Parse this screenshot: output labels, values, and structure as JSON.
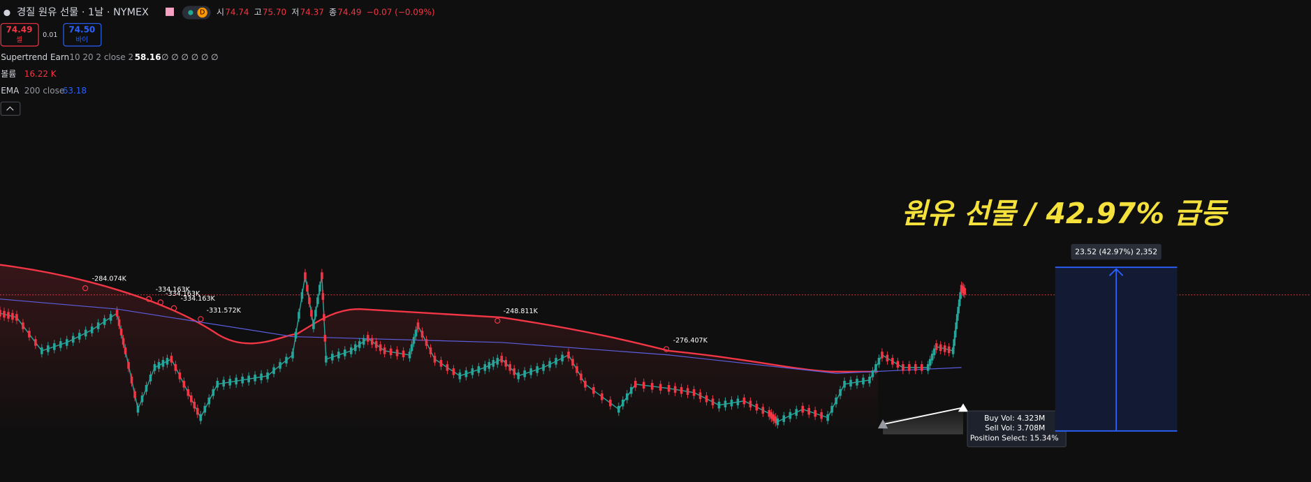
{
  "header": {
    "symbol": "경질 원유 선물 · 1날 · NYMEX",
    "interval": "D",
    "ohlc": [
      {
        "label": "시",
        "value": "74.74"
      },
      {
        "label": "고",
        "value": "75.70"
      },
      {
        "label": "저",
        "value": "74.37"
      },
      {
        "label": "종",
        "value": "74.49"
      }
    ],
    "change": "−0.07 (−0.09%)"
  },
  "trade": {
    "sell_price": "74.49",
    "sell_label": "셀",
    "spread": "0.01",
    "buy_price": "74.50",
    "buy_label": "바이"
  },
  "indicators": [
    {
      "name": "Supertrend Earn",
      "params": "10 20 2 close 2",
      "value": "58.16",
      "extra": "∅ ∅ ∅ ∅ ∅ ∅"
    },
    {
      "name": "볼륨",
      "value": "16.22 K"
    },
    {
      "name": "EMA",
      "params": "200 close",
      "value": "63.18"
    }
  ],
  "headline": "원유 선물 / 42.97% 급등",
  "measure_label": "23.52 (42.97%) 2,352",
  "volume_labels": [
    "-284.074K",
    "-334.163K",
    "-334.163K",
    "-334.163K",
    "-331.572K",
    "-248.811K",
    "-276.407K"
  ],
  "info_box": [
    "Buy Vol: 4.323M",
    "Sell Vol: 3.708M",
    "Position Select: 15.34%"
  ]
}
